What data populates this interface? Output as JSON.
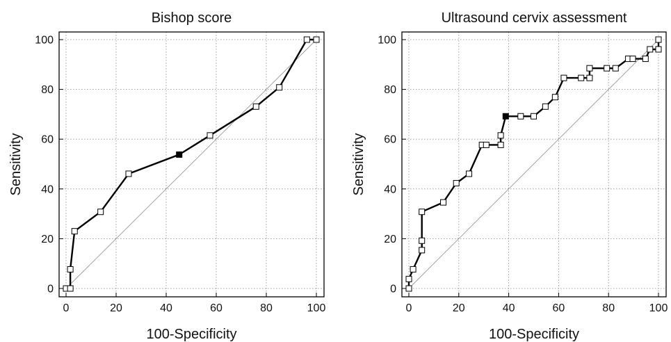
{
  "chart_data": [
    {
      "type": "line",
      "title": "Bishop score",
      "xlabel": "100-Specificity",
      "ylabel": "Sensitivity",
      "xlim": [
        0,
        100
      ],
      "ylim": [
        0,
        100
      ],
      "xticks": [
        0,
        20,
        40,
        60,
        80,
        100
      ],
      "yticks": [
        0,
        20,
        40,
        60,
        80,
        100
      ],
      "grid": true,
      "reference_line": [
        [
          0,
          0
        ],
        [
          100,
          100
        ]
      ],
      "series": [
        {
          "points": [
            [
              0,
              0
            ],
            [
              1.7,
              0
            ],
            [
              1.7,
              7.7
            ],
            [
              3.4,
              23
            ],
            [
              13.8,
              30.8
            ],
            [
              25,
              46.1
            ],
            [
              45.2,
              53.8
            ],
            [
              57.5,
              61.5
            ],
            [
              75.9,
              73.1
            ],
            [
              85.2,
              80.8
            ],
            [
              96.2,
              100
            ],
            [
              100,
              100
            ]
          ],
          "highlight_index": 6
        }
      ]
    },
    {
      "type": "line",
      "title": "Ultrasound cervix assessment",
      "xlabel": "100-Specificity",
      "ylabel": "Sensitivity",
      "xlim": [
        0,
        100
      ],
      "ylim": [
        0,
        100
      ],
      "xticks": [
        0,
        20,
        40,
        60,
        80,
        100
      ],
      "yticks": [
        0,
        20,
        40,
        60,
        80,
        100
      ],
      "grid": true,
      "reference_line": [
        [
          0,
          0
        ],
        [
          100,
          100
        ]
      ],
      "series": [
        {
          "points": [
            [
              0,
              0
            ],
            [
              0,
              3.8
            ],
            [
              1.7,
              7.7
            ],
            [
              5.2,
              15.4
            ],
            [
              5.2,
              19.2
            ],
            [
              5.2,
              30.8
            ],
            [
              13.8,
              34.6
            ],
            [
              19,
              42.3
            ],
            [
              24.1,
              46.1
            ],
            [
              29.3,
              57.7
            ],
            [
              31,
              57.7
            ],
            [
              36.8,
              57.7
            ],
            [
              36.8,
              61.5
            ],
            [
              38.8,
              69.2
            ],
            [
              44.8,
              69.2
            ],
            [
              50,
              69.2
            ],
            [
              54.7,
              73.1
            ],
            [
              58.6,
              76.9
            ],
            [
              62.1,
              84.6
            ],
            [
              69,
              84.6
            ],
            [
              72.4,
              84.6
            ],
            [
              72.4,
              88.5
            ],
            [
              79.3,
              88.5
            ],
            [
              82.8,
              88.5
            ],
            [
              87.9,
              92.3
            ],
            [
              89.7,
              92.3
            ],
            [
              94.8,
              92.3
            ],
            [
              96.6,
              96.1
            ],
            [
              100,
              96.1
            ],
            [
              100,
              100
            ]
          ],
          "highlight_index": 13
        }
      ]
    }
  ]
}
